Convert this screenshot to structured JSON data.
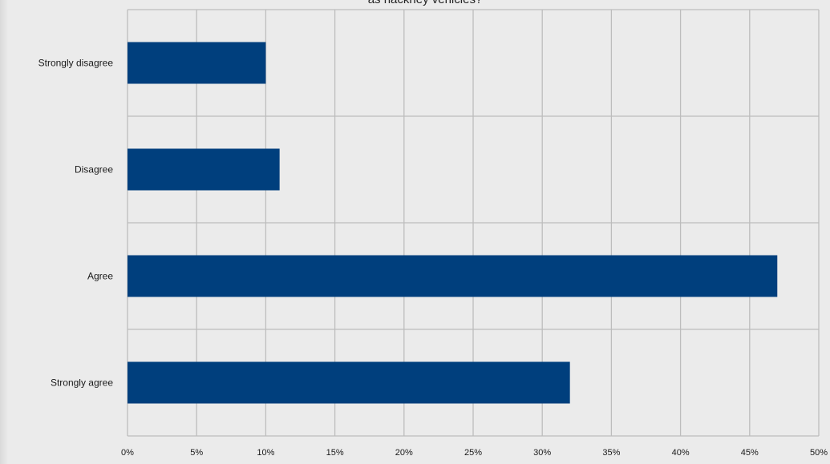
{
  "chart_data": {
    "type": "bar",
    "orientation": "horizontal",
    "title": "as hackney vehicles?",
    "categories": [
      "Strongly disagree",
      "Disagree",
      "Agree",
      "Strongly agree"
    ],
    "values": [
      10,
      11,
      47,
      32
    ],
    "value_unit": "%",
    "xlim": [
      0,
      50
    ],
    "xticks": [
      "0%",
      "5%",
      "10%",
      "15%",
      "20%",
      "25%",
      "30%",
      "35%",
      "40%",
      "45%",
      "50%"
    ],
    "xlabel": "",
    "ylabel": "",
    "grid": true,
    "legend": "none",
    "bar_color": "#003f7d",
    "grid_color": "#bdbdbd"
  }
}
